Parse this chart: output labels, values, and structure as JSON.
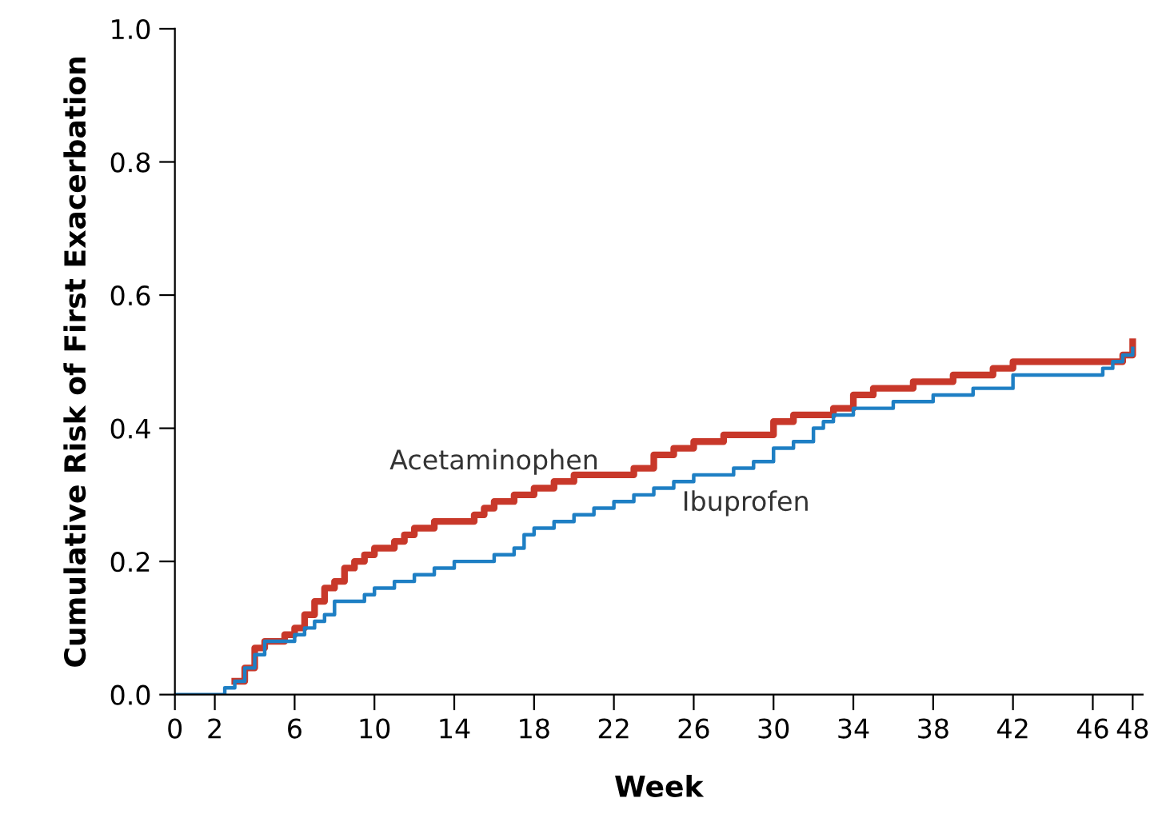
{
  "chart_data": {
    "type": "step",
    "xlabel": "Week",
    "ylabel": "Cumulative Risk of First Exacerbation",
    "xlim": [
      0,
      48.5
    ],
    "xticks": [
      0,
      2,
      6,
      10,
      14,
      18,
      22,
      26,
      30,
      34,
      38,
      42,
      46,
      48
    ],
    "ylim": [
      0,
      1.0
    ],
    "yticks": [
      {
        "value": 0,
        "label": "0.0"
      },
      {
        "value": 0.2,
        "label": "0.2"
      },
      {
        "value": 0.4,
        "label": "0.4"
      },
      {
        "value": 0.6,
        "label": "0.6"
      },
      {
        "value": 0.8,
        "label": "0.8"
      },
      {
        "value": 1.0,
        "label": "1.0"
      }
    ],
    "grid": false,
    "marker": "none",
    "line_style": "solid",
    "series": [
      {
        "name": "Acetaminophen",
        "color": "#c8382a",
        "x": [
          3,
          3.5,
          4,
          4.5,
          5.5,
          6,
          6.5,
          7,
          7.5,
          8,
          8.5,
          9,
          9.5,
          10,
          11,
          11.5,
          12,
          13,
          15,
          15.5,
          16,
          17,
          18,
          19,
          20,
          23,
          24,
          25,
          26,
          27.5,
          30,
          31,
          33,
          34,
          35,
          37,
          39,
          41,
          42,
          47,
          47.5,
          48
        ],
        "values": [
          0.02,
          0.04,
          0.07,
          0.08,
          0.09,
          0.1,
          0.12,
          0.14,
          0.16,
          0.17,
          0.19,
          0.2,
          0.21,
          0.22,
          0.23,
          0.24,
          0.25,
          0.26,
          0.27,
          0.28,
          0.29,
          0.3,
          0.31,
          0.32,
          0.33,
          0.34,
          0.36,
          0.37,
          0.38,
          0.39,
          0.41,
          0.42,
          0.43,
          0.45,
          0.46,
          0.47,
          0.48,
          0.49,
          0.5,
          0.5,
          0.51,
          0.53
        ]
      },
      {
        "name": "Ibuprofen",
        "color": "#1e7fc4",
        "x": [
          0,
          2,
          2.5,
          3,
          3.5,
          4,
          4.5,
          5.5,
          6,
          6.5,
          7,
          7.5,
          8,
          9.5,
          10,
          11,
          12,
          13,
          14,
          16,
          17,
          17.5,
          18,
          19,
          20,
          21,
          22,
          23,
          24,
          25,
          26,
          28,
          29,
          30,
          31,
          32,
          32.5,
          33,
          34,
          35,
          36,
          38,
          40,
          41,
          42,
          46.5,
          47,
          47.5,
          48
        ],
        "values": [
          0,
          0,
          0.01,
          0.02,
          0.04,
          0.06,
          0.08,
          0.08,
          0.09,
          0.1,
          0.11,
          0.12,
          0.14,
          0.15,
          0.16,
          0.17,
          0.18,
          0.19,
          0.2,
          0.21,
          0.22,
          0.24,
          0.25,
          0.26,
          0.27,
          0.28,
          0.29,
          0.3,
          0.31,
          0.32,
          0.33,
          0.34,
          0.35,
          0.37,
          0.38,
          0.4,
          0.41,
          0.42,
          0.43,
          0.43,
          0.44,
          0.45,
          0.46,
          0.46,
          0.48,
          0.49,
          0.5,
          0.51,
          0.52
        ]
      }
    ]
  }
}
